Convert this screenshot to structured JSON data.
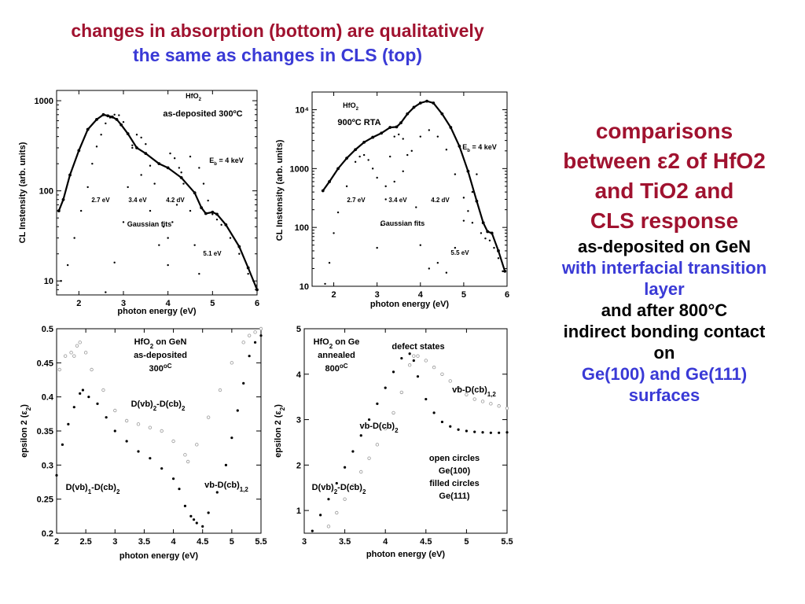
{
  "title": {
    "line1": "changes in absorption (bottom) are qualitatively",
    "line2": "the same as changes in CLS (top)"
  },
  "side": {
    "l1": "comparisons",
    "l2": "between ε2 of HfO2",
    "l3": "and TiO2 and",
    "l4": "CLS response",
    "l5": "as-deposited on GeN",
    "l6": "with interfacial transition",
    "l7": "layer",
    "l8": "and after 800°C",
    "l9": "indirect bonding contact",
    "l10": "on",
    "l11": "Ge(100) and Ge(111)",
    "l12": "surfaces"
  },
  "colors": {
    "title_red": "#a0122f",
    "title_blue": "#3a3ad6",
    "filled": "#000000",
    "open": "#999999"
  },
  "chart_data": [
    {
      "id": "cl-as-deposited",
      "type": "scatter",
      "xlabel": "photon energy (eV)",
      "ylabel": "CL Instensity (arb. units)",
      "xlim": [
        1.5,
        6
      ],
      "ylim": [
        7,
        1300
      ],
      "yscale": "log",
      "xticks": [
        2,
        3,
        4,
        5,
        6
      ],
      "yticks": [
        10,
        100,
        1000
      ],
      "yticklabels": [
        "10",
        "100",
        "1000"
      ],
      "annotations": [
        "HfO2",
        "as-deposited 300ºC",
        "Eb = 4 keV",
        "2.7 eV",
        "3.4 eV",
        "4.2 dV",
        "Gaussian fits",
        "5.1 eV"
      ],
      "series": [
        {
          "style": "line",
          "x": [
            1.55,
            1.65,
            1.8,
            2.0,
            2.2,
            2.4,
            2.55,
            2.65,
            2.75,
            2.85,
            2.95,
            3.1,
            3.3,
            3.5,
            3.8,
            4.0,
            4.3,
            4.6,
            4.75,
            4.85,
            5.0,
            5.1,
            5.3,
            5.6,
            5.8,
            6.0
          ],
          "y": [
            60,
            80,
            150,
            280,
            480,
            620,
            700,
            680,
            660,
            620,
            540,
            430,
            300,
            260,
            200,
            180,
            140,
            95,
            65,
            56,
            58,
            55,
            42,
            24,
            14,
            8
          ]
        },
        {
          "style": "dots",
          "x": [
            1.6,
            1.75,
            1.9,
            2.05,
            2.2,
            2.3,
            2.4,
            2.5,
            2.6,
            2.7,
            2.8,
            2.9,
            3.0,
            3.2,
            3.4,
            3.6,
            3.8,
            4.0,
            4.1,
            4.2,
            4.3,
            4.5,
            4.7,
            4.8,
            4.9,
            5.0,
            5.1,
            5.2,
            5.4,
            5.6,
            5.8,
            6.0
          ],
          "y": [
            10,
            15,
            30,
            60,
            110,
            200,
            310,
            420,
            560,
            650,
            700,
            690,
            580,
            300,
            150,
            60,
            25,
            30,
            45,
            70,
            160,
            240,
            180,
            120,
            78,
            55,
            48,
            42,
            30,
            20,
            12,
            8
          ]
        },
        {
          "style": "dots",
          "x": [
            2.6,
            2.8,
            3.0,
            3.1,
            3.2,
            3.3,
            3.4,
            3.5,
            3.6,
            3.7,
            3.9,
            4.0,
            4.05,
            4.15,
            4.25,
            4.35,
            4.5,
            4.6,
            4.7
          ],
          "y": [
            7.5,
            16,
            45,
            110,
            320,
            420,
            390,
            330,
            190,
            120,
            40,
            15,
            260,
            230,
            180,
            120,
            60,
            25,
            12
          ]
        }
      ]
    },
    {
      "id": "cl-900",
      "type": "scatter",
      "xlabel": "photon energy (eV)",
      "ylabel": "CL Instensity (arb. units)",
      "xlim": [
        1.5,
        6
      ],
      "ylim": [
        10,
        20000
      ],
      "yscale": "log",
      "xticks": [
        2,
        3,
        4,
        5,
        6
      ],
      "yticks": [
        10,
        100,
        1000,
        10000
      ],
      "yticklabels": [
        "10",
        "100",
        "1000",
        "10⁴"
      ],
      "annotations": [
        "HfO2",
        "900ºC RTA",
        "Eb = 4 keV",
        "2.7 eV",
        "3.4 eV",
        "4.2 dV",
        "Gaussian fits",
        "5.5 eV"
      ],
      "series": [
        {
          "style": "line",
          "x": [
            1.75,
            1.9,
            2.1,
            2.3,
            2.5,
            2.7,
            2.9,
            3.1,
            3.3,
            3.45,
            3.55,
            3.7,
            3.85,
            4.0,
            4.15,
            4.3,
            4.5,
            4.7,
            4.9,
            5.1,
            5.3,
            5.45,
            5.55,
            5.65,
            5.8,
            5.95
          ],
          "y": [
            420,
            600,
            1000,
            1500,
            2100,
            2800,
            3400,
            4000,
            5000,
            5100,
            6000,
            8500,
            11000,
            13000,
            14000,
            13000,
            8500,
            5000,
            2400,
            900,
            280,
            120,
            85,
            80,
            40,
            18
          ]
        },
        {
          "style": "dots",
          "x": [
            1.8,
            1.9,
            2.0,
            2.1,
            2.3,
            2.5,
            2.6,
            2.7,
            2.8,
            2.9,
            3.0,
            3.2,
            3.4,
            3.6,
            3.8,
            4.0,
            4.2,
            4.4,
            4.6,
            4.8,
            5.0,
            5.2,
            5.4,
            5.5,
            5.6,
            5.7,
            5.8,
            5.9
          ],
          "y": [
            11,
            25,
            80,
            180,
            500,
            1300,
            1600,
            1700,
            1400,
            1000,
            700,
            500,
            600,
            900,
            2000,
            3500,
            4500,
            3500,
            2100,
            800,
            320,
            120,
            80,
            65,
            60,
            45,
            30,
            18
          ]
        },
        {
          "style": "dots",
          "x": [
            3.0,
            3.1,
            3.2,
            3.3,
            3.4,
            3.5,
            3.6,
            3.7,
            3.9,
            4.0,
            4.2,
            4.4,
            4.6,
            4.8,
            5.0,
            5.1,
            5.2,
            5.3
          ],
          "y": [
            45,
            110,
            300,
            1600,
            3500,
            3800,
            3200,
            1700,
            220,
            50,
            20,
            25,
            17,
            45,
            130,
            190,
            400,
            800
          ]
        }
      ]
    },
    {
      "id": "eps-300",
      "type": "scatter",
      "xlabel": "photon energy (eV)",
      "ylabel": "epsilon 2 (ε2)",
      "xlim": [
        2,
        5.5
      ],
      "ylim": [
        0.2,
        0.5
      ],
      "xticks": [
        2,
        2.5,
        3,
        3.5,
        4,
        4.5,
        5,
        5.5
      ],
      "yticks": [
        0.2,
        0.25,
        0.3,
        0.35,
        0.4,
        0.45,
        0.5
      ],
      "annotations": [
        "HfO2 on GeN",
        "as-deposited",
        "300oC",
        "D(vb)2-D(cb)2",
        "D(vb)1-D(cb)2",
        "vb-D(cb)1,2"
      ],
      "series": [
        {
          "name": "filled",
          "style": "filled",
          "x": [
            2.0,
            2.1,
            2.2,
            2.3,
            2.4,
            2.45,
            2.55,
            2.7,
            2.85,
            3.0,
            3.2,
            3.4,
            3.6,
            3.8,
            4.0,
            4.1,
            4.2,
            4.3,
            4.35,
            4.4,
            4.5,
            4.6,
            4.75,
            4.9,
            5.0,
            5.1,
            5.2,
            5.3,
            5.4,
            5.5
          ],
          "y": [
            0.285,
            0.33,
            0.36,
            0.385,
            0.405,
            0.41,
            0.4,
            0.39,
            0.37,
            0.35,
            0.335,
            0.32,
            0.31,
            0.295,
            0.28,
            0.265,
            0.24,
            0.225,
            0.22,
            0.215,
            0.21,
            0.23,
            0.26,
            0.3,
            0.34,
            0.38,
            0.42,
            0.46,
            0.48,
            0.49
          ]
        },
        {
          "name": "open",
          "style": "open",
          "x": [
            2.05,
            2.15,
            2.25,
            2.3,
            2.35,
            2.4,
            2.5,
            2.6,
            2.8,
            3.0,
            3.2,
            3.4,
            3.6,
            3.8,
            4.0,
            4.2,
            4.25,
            4.4,
            4.6,
            4.8,
            5.0,
            5.2,
            5.3,
            5.4,
            5.5
          ],
          "y": [
            0.44,
            0.46,
            0.465,
            0.46,
            0.475,
            0.48,
            0.465,
            0.44,
            0.41,
            0.38,
            0.365,
            0.36,
            0.355,
            0.35,
            0.335,
            0.315,
            0.305,
            0.33,
            0.37,
            0.41,
            0.45,
            0.48,
            0.49,
            0.495,
            0.5
          ]
        }
      ]
    },
    {
      "id": "eps-800",
      "type": "scatter",
      "xlabel": "photon energy (eV)",
      "ylabel": "epsilon 2 (ε2)",
      "xlim": [
        3,
        5.5
      ],
      "ylim": [
        0.5,
        5
      ],
      "xticks": [
        3,
        3.5,
        4,
        4.5,
        5,
        5.5
      ],
      "yticks": [
        1,
        2,
        3,
        4,
        5
      ],
      "annotations": [
        "HfO2 on Ge",
        "annealed",
        "800oC",
        "defect states",
        "vb-D(cb)1,2",
        "vb-D(cb)2",
        "D(vb)2-D(cb)2",
        "open circles",
        "Ge(100)",
        "filled circles",
        "Ge(111)"
      ],
      "series": [
        {
          "name": "Ge(111)",
          "style": "filled",
          "x": [
            3.1,
            3.2,
            3.3,
            3.4,
            3.5,
            3.6,
            3.7,
            3.8,
            3.9,
            4.0,
            4.1,
            4.2,
            4.3,
            4.35,
            4.4,
            4.5,
            4.6,
            4.7,
            4.8,
            4.9,
            5.0,
            5.1,
            5.2,
            5.3,
            5.4,
            5.5
          ],
          "y": [
            0.55,
            0.9,
            1.25,
            1.6,
            1.95,
            2.3,
            2.65,
            3.0,
            3.35,
            3.7,
            4.05,
            4.35,
            4.45,
            4.3,
            3.95,
            3.45,
            3.15,
            2.95,
            2.85,
            2.78,
            2.75,
            2.73,
            2.72,
            2.71,
            2.71,
            2.72
          ]
        },
        {
          "name": "Ge(100)",
          "style": "open",
          "x": [
            3.3,
            3.4,
            3.5,
            3.6,
            3.7,
            3.8,
            3.9,
            4.0,
            4.1,
            4.2,
            4.3,
            4.35,
            4.4,
            4.5,
            4.6,
            4.7,
            4.8,
            4.9,
            5.0,
            5.1,
            5.2,
            5.3,
            5.4,
            5.5
          ],
          "y": [
            0.65,
            0.95,
            1.25,
            1.55,
            1.85,
            2.15,
            2.45,
            2.8,
            3.15,
            3.6,
            4.2,
            4.4,
            4.4,
            4.3,
            4.15,
            4.0,
            3.85,
            3.7,
            3.55,
            3.45,
            3.4,
            3.35,
            3.3,
            3.25
          ]
        }
      ]
    }
  ]
}
